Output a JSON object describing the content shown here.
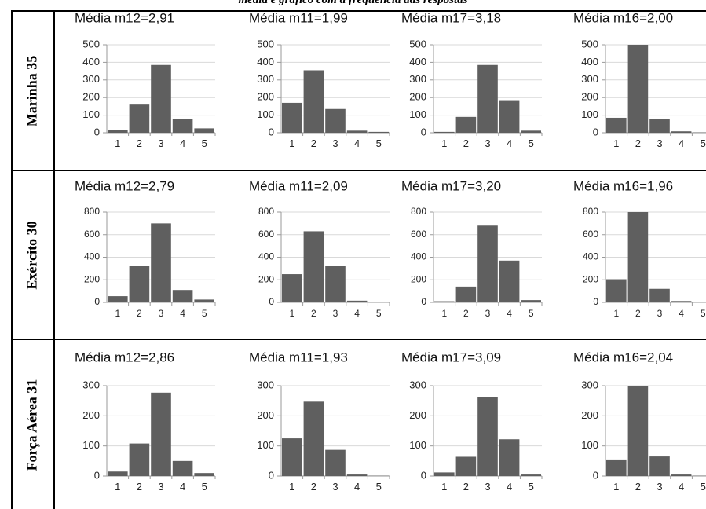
{
  "caption": "média e gráfico com a frequência das respostas",
  "colors": {
    "bar": "#5f5f5f",
    "axis": "#9a9a9a",
    "border": "#000000"
  },
  "rows": [
    {
      "label": "Marinha 35"
    },
    {
      "label": "Exército 30"
    },
    {
      "label": "Força Aérea 31"
    }
  ],
  "chart_data": [
    {
      "type": "bar",
      "title": "Média m12=2,91",
      "categories": [
        "1",
        "2",
        "3",
        "4",
        "5"
      ],
      "values": [
        15,
        160,
        385,
        80,
        25
      ],
      "ylim": [
        0,
        500
      ],
      "yticks": [
        "0",
        "100",
        "200",
        "300",
        "400",
        "500"
      ]
    },
    {
      "type": "bar",
      "title": "Média m11=1,99",
      "categories": [
        "1",
        "2",
        "3",
        "4",
        "5"
      ],
      "values": [
        170,
        355,
        135,
        12,
        5
      ],
      "ylim": [
        0,
        500
      ],
      "yticks": [
        "0",
        "100",
        "200",
        "300",
        "400",
        "500"
      ]
    },
    {
      "type": "bar",
      "title": "Média m17=3,18",
      "categories": [
        "1",
        "2",
        "3",
        "4",
        "5"
      ],
      "values": [
        5,
        90,
        385,
        185,
        12
      ],
      "ylim": [
        0,
        500
      ],
      "yticks": [
        "0",
        "100",
        "200",
        "300",
        "400",
        "500"
      ]
    },
    {
      "type": "bar",
      "title": "Média m16=2,00",
      "categories": [
        "1",
        "2",
        "3",
        "4",
        "5"
      ],
      "values": [
        85,
        500,
        80,
        8,
        2
      ],
      "ylim": [
        0,
        500
      ],
      "yticks": [
        "0",
        "100",
        "200",
        "300",
        "400",
        "500"
      ]
    },
    {
      "type": "bar",
      "title": "Média m12=2,79",
      "categories": [
        "1",
        "2",
        "3",
        "4",
        "5"
      ],
      "values": [
        55,
        320,
        700,
        110,
        25
      ],
      "ylim": [
        0,
        800
      ],
      "yticks": [
        "0",
        "200",
        "400",
        "600",
        "800"
      ]
    },
    {
      "type": "bar",
      "title": "Média m11=2,09",
      "categories": [
        "1",
        "2",
        "3",
        "4",
        "5"
      ],
      "values": [
        250,
        630,
        320,
        15,
        5
      ],
      "ylim": [
        0,
        800
      ],
      "yticks": [
        "0",
        "200",
        "400",
        "600",
        "800"
      ]
    },
    {
      "type": "bar",
      "title": "Média m17=3,20",
      "categories": [
        "1",
        "2",
        "3",
        "4",
        "5"
      ],
      "values": [
        10,
        140,
        680,
        370,
        20
      ],
      "ylim": [
        0,
        800
      ],
      "yticks": [
        "0",
        "200",
        "400",
        "600",
        "800"
      ]
    },
    {
      "type": "bar",
      "title": "Média m16=1,96",
      "categories": [
        "1",
        "2",
        "3",
        "4",
        "5"
      ],
      "values": [
        205,
        800,
        120,
        12,
        2
      ],
      "ylim": [
        0,
        800
      ],
      "yticks": [
        "0",
        "200",
        "400",
        "600",
        "800"
      ]
    },
    {
      "type": "bar",
      "title": "Média m12=2,86",
      "categories": [
        "1",
        "2",
        "3",
        "4",
        "5"
      ],
      "values": [
        15,
        108,
        277,
        50,
        10
      ],
      "ylim": [
        0,
        300
      ],
      "yticks": [
        "0",
        "100",
        "200",
        "300"
      ]
    },
    {
      "type": "bar",
      "title": "Média m11=1,93",
      "categories": [
        "1",
        "2",
        "3",
        "4",
        "5"
      ],
      "values": [
        125,
        247,
        87,
        5,
        1
      ],
      "ylim": [
        0,
        300
      ],
      "yticks": [
        "0",
        "100",
        "200",
        "300"
      ]
    },
    {
      "type": "bar",
      "title": "Média m17=3,09",
      "categories": [
        "1",
        "2",
        "3",
        "4",
        "5"
      ],
      "values": [
        12,
        64,
        263,
        122,
        5
      ],
      "ylim": [
        0,
        300
      ],
      "yticks": [
        "0",
        "100",
        "200",
        "300"
      ]
    },
    {
      "type": "bar",
      "title": "Média m16=2,04",
      "categories": [
        "1",
        "2",
        "3",
        "4",
        "5"
      ],
      "values": [
        55,
        300,
        65,
        5,
        1
      ],
      "ylim": [
        0,
        300
      ],
      "yticks": [
        "0",
        "100",
        "200",
        "300"
      ]
    }
  ]
}
